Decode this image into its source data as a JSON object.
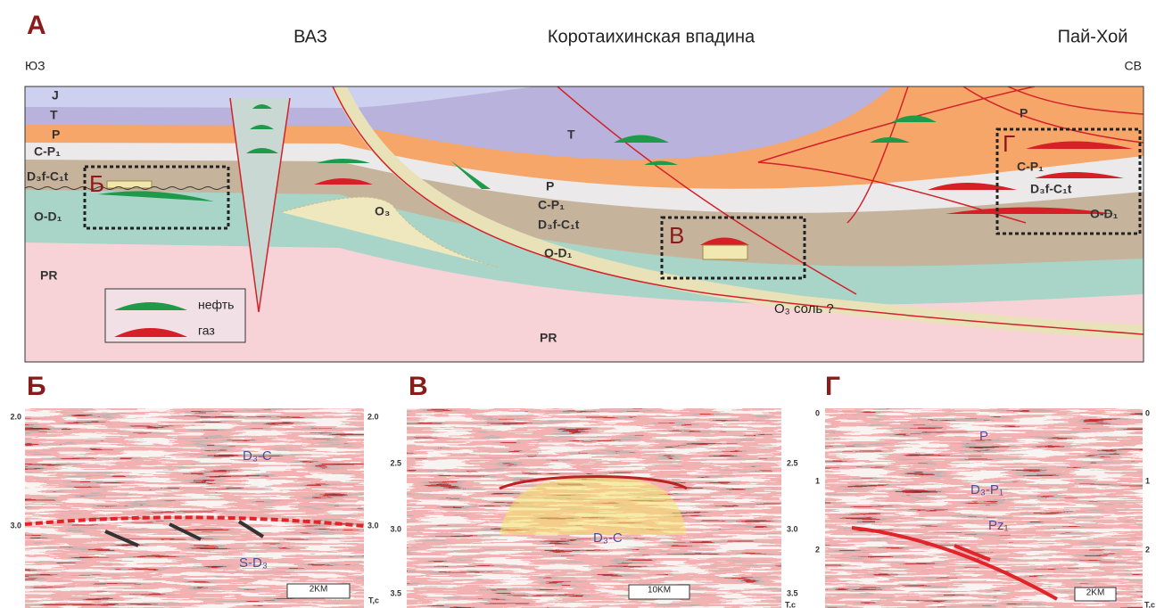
{
  "panel_a": {
    "label": "А",
    "headers": [
      "ВАЗ",
      "Коротаихинская впадина",
      "Пай-Хой"
    ],
    "directions": [
      "ЮЗ",
      "СВ"
    ],
    "layers_left": [
      "J",
      "T",
      "P",
      "C-P₁",
      "D₃f-C₁t",
      "O-D₁",
      "PR"
    ],
    "layers_center": [
      "O₃",
      "T",
      "P",
      "C-P₁",
      "D₃f-C₁t",
      "O-D₁",
      "O₃ соль ?",
      "PR"
    ],
    "layers_right": [
      "P",
      "C-P₁",
      "D₃f-C₁t",
      "O-D₁"
    ],
    "inset_labels": [
      "Б",
      "В",
      "Г"
    ],
    "legend": [
      "нефть",
      "газ"
    ]
  },
  "panel_b": {
    "label": "Б",
    "ticks": [
      "2.0",
      "3.0"
    ],
    "formations": [
      "D₃-C",
      "S-D₃"
    ],
    "scale": "2KM",
    "units": "T,c"
  },
  "panel_v": {
    "label": "В",
    "ticks": [
      "2.5",
      "3.0",
      "3.5"
    ],
    "formations": [
      "D₃-C"
    ],
    "scale": "10KM",
    "units": "T,c"
  },
  "panel_g": {
    "label": "Г",
    "ticks": [
      "0",
      "1",
      "2"
    ],
    "formations": [
      "P",
      "D₃-P₁",
      "Pz₁"
    ],
    "scale": "2KM",
    "units": "T,c"
  }
}
